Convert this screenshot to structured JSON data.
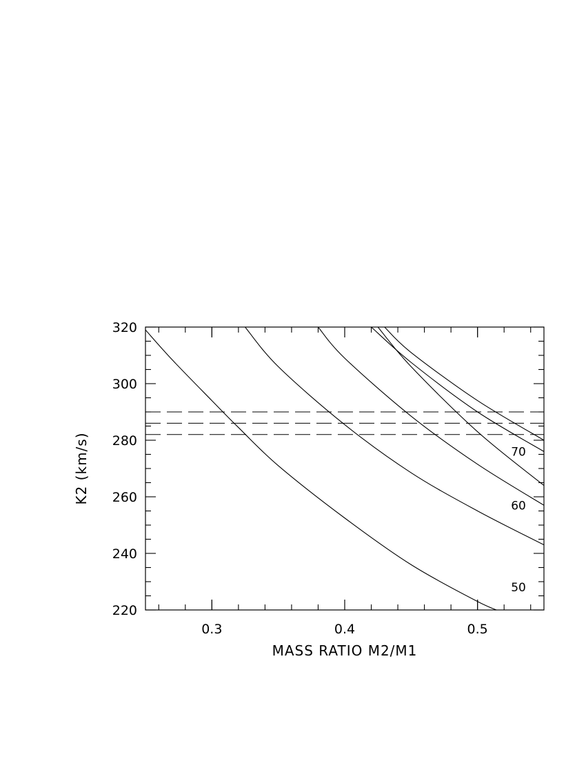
{
  "chart_data": {
    "type": "line",
    "xlabel": "MASS RATIO M2/M1",
    "ylabel": "K2 (km/s)",
    "xlim": [
      0.25,
      0.55
    ],
    "ylim": [
      220,
      320
    ],
    "x_ticks": [
      0.3,
      0.4,
      0.5
    ],
    "x_tick_labels": [
      "0.3",
      "0.4",
      "0.5"
    ],
    "y_ticks": [
      220,
      240,
      260,
      280,
      300,
      320
    ],
    "y_tick_labels": [
      "220",
      "240",
      "260",
      "280",
      "300",
      "320"
    ],
    "grid": false,
    "series": [
      {
        "name": "50",
        "x": [
          0.25,
          0.27,
          0.3,
          0.32,
          0.35,
          0.4,
          0.45,
          0.5,
          0.52
        ],
        "y": [
          319,
          308.5,
          294,
          284.5,
          271,
          252.5,
          236,
          223,
          219
        ]
      },
      {
        "name": "60",
        "x": [
          0.325,
          0.35,
          0.4,
          0.45,
          0.5,
          0.55
        ],
        "y": [
          320,
          306,
          285.5,
          268.5,
          255,
          243
        ]
      },
      {
        "x": [
          0.38,
          0.4,
          0.45,
          0.5,
          0.55
        ],
        "y": [
          320,
          309,
          288.5,
          271.5,
          257
        ]
      },
      {
        "name": "70",
        "x": [
          0.425,
          0.45,
          0.5,
          0.55
        ],
        "y": [
          320,
          306,
          283,
          264
        ]
      },
      {
        "x": [
          0.42,
          0.45,
          0.5,
          0.55
        ],
        "y": [
          320,
          307.5,
          290,
          276
        ]
      },
      {
        "x": [
          0.43,
          0.45,
          0.5,
          0.55
        ],
        "y": [
          320,
          311,
          294,
          280
        ]
      }
    ],
    "reference_lines": [
      {
        "orientation": "horizontal",
        "style": "dashed",
        "y": 290
      },
      {
        "orientation": "horizontal",
        "style": "dashed",
        "y": 286
      },
      {
        "orientation": "horizontal",
        "style": "dashed",
        "y": 282
      }
    ],
    "curve_labels": [
      {
        "text": "70",
        "x": 0.52,
        "y": 276
      },
      {
        "text": "60",
        "x": 0.52,
        "y": 257
      },
      {
        "text": "50",
        "x": 0.52,
        "y": 228
      }
    ]
  }
}
